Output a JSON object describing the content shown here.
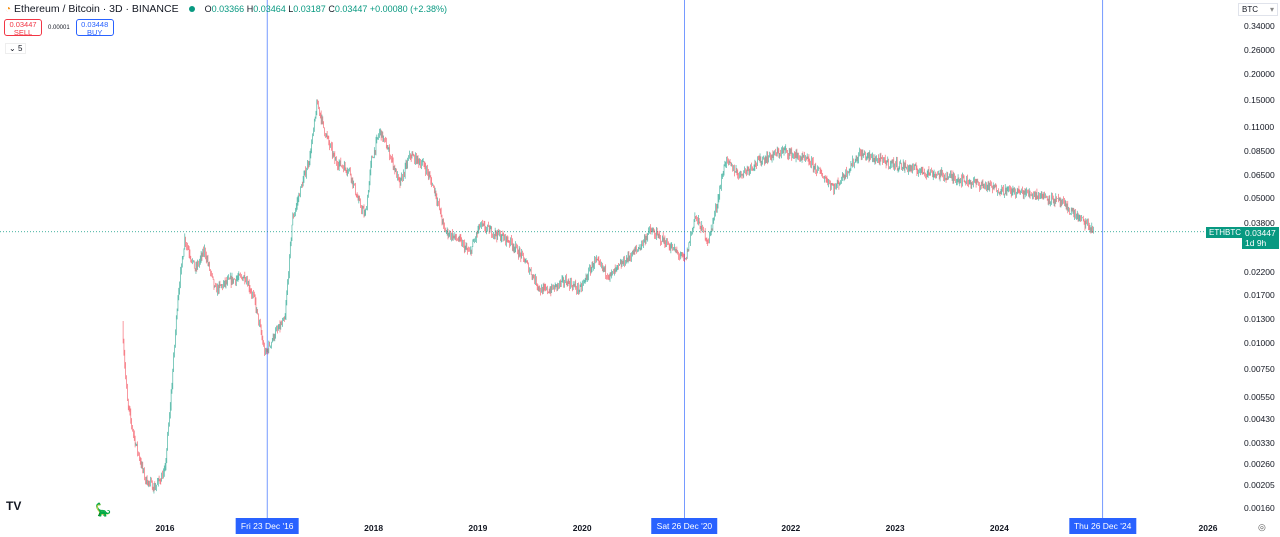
{
  "header": {
    "symbol": "Ethereum / Bitcoin · 3D · BINANCE",
    "open_label": "O",
    "open": "0.03366",
    "high_label": "H",
    "high": "0.03464",
    "low_label": "L",
    "low": "0.03187",
    "close_label": "C",
    "close": "0.03447",
    "change": "+0.00080 (+2.38%)"
  },
  "trade": {
    "sell_price": "0.03447",
    "sell_label": "SELL",
    "spread": "0.00001",
    "buy_price": "0.03448",
    "buy_label": "BUY"
  },
  "indicators_toggle": "5",
  "currency": "BTC",
  "price_tag": {
    "symbol": "ETHBTC",
    "price": "0.03447",
    "countdown": "1d 9h"
  },
  "colors": {
    "up": "#089981",
    "down": "#f23645",
    "crosshair": "#2962ff"
  },
  "chart_data": {
    "type": "candlestick",
    "scale": "log",
    "y_ticks": [
      "0.34000",
      "0.26000",
      "0.20000",
      "0.15000",
      "0.11000",
      "0.08500",
      "0.06500",
      "0.05000",
      "0.03800",
      "0.02200",
      "0.01700",
      "0.01300",
      "0.01000",
      "0.00750",
      "0.00550",
      "0.00430",
      "0.00330",
      "0.00260",
      "0.00205",
      "0.00160"
    ],
    "x_ticks": [
      "2016",
      "2018",
      "2019",
      "2020",
      "2022",
      "2023",
      "2024",
      "2026"
    ],
    "markers": [
      {
        "label": "Fri 23 Dec '16",
        "t": 2016.98
      },
      {
        "label": "Sat 26 Dec '20",
        "t": 2020.98
      },
      {
        "label": "Thu 26 Dec '24",
        "t": 2024.99
      }
    ],
    "last_price": 0.03447,
    "anchors": [
      [
        2015.59,
        0.0122
      ],
      [
        2015.64,
        0.0051
      ],
      [
        2015.71,
        0.0034
      ],
      [
        2015.81,
        0.0022
      ],
      [
        2015.9,
        0.002
      ],
      [
        2016.0,
        0.0024
      ],
      [
        2016.07,
        0.0067
      ],
      [
        2016.12,
        0.0162
      ],
      [
        2016.19,
        0.032
      ],
      [
        2016.29,
        0.0225
      ],
      [
        2016.38,
        0.028
      ],
      [
        2016.48,
        0.018
      ],
      [
        2016.62,
        0.02
      ],
      [
        2016.77,
        0.021
      ],
      [
        2016.86,
        0.016
      ],
      [
        2016.96,
        0.0088
      ],
      [
        2017.05,
        0.011
      ],
      [
        2017.15,
        0.0129
      ],
      [
        2017.22,
        0.039
      ],
      [
        2017.29,
        0.053
      ],
      [
        2017.39,
        0.08
      ],
      [
        2017.46,
        0.145
      ],
      [
        2017.53,
        0.106
      ],
      [
        2017.63,
        0.076
      ],
      [
        2017.77,
        0.068
      ],
      [
        2017.85,
        0.049
      ],
      [
        2017.92,
        0.041
      ],
      [
        2017.98,
        0.076
      ],
      [
        2018.06,
        0.106
      ],
      [
        2018.16,
        0.081
      ],
      [
        2018.25,
        0.058
      ],
      [
        2018.35,
        0.081
      ],
      [
        2018.49,
        0.072
      ],
      [
        2018.59,
        0.054
      ],
      [
        2018.68,
        0.035
      ],
      [
        2018.83,
        0.031
      ],
      [
        2018.92,
        0.027
      ],
      [
        2019.02,
        0.037
      ],
      [
        2019.16,
        0.034
      ],
      [
        2019.31,
        0.031
      ],
      [
        2019.45,
        0.025
      ],
      [
        2019.6,
        0.018
      ],
      [
        2019.69,
        0.018
      ],
      [
        2019.84,
        0.02
      ],
      [
        2019.98,
        0.018
      ],
      [
        2020.12,
        0.025
      ],
      [
        2020.27,
        0.021
      ],
      [
        2020.41,
        0.025
      ],
      [
        2020.55,
        0.029
      ],
      [
        2020.65,
        0.035
      ],
      [
        2020.79,
        0.031
      ],
      [
        2020.99,
        0.025
      ],
      [
        2021.08,
        0.041
      ],
      [
        2021.21,
        0.031
      ],
      [
        2021.3,
        0.049
      ],
      [
        2021.37,
        0.076
      ],
      [
        2021.51,
        0.065
      ],
      [
        2021.7,
        0.076
      ],
      [
        2021.94,
        0.085
      ],
      [
        2022.18,
        0.075
      ],
      [
        2022.42,
        0.056
      ],
      [
        2022.66,
        0.082
      ],
      [
        2022.86,
        0.076
      ],
      [
        2023.24,
        0.068
      ],
      [
        2023.62,
        0.062
      ],
      [
        2024.01,
        0.055
      ],
      [
        2024.39,
        0.052
      ],
      [
        2024.58,
        0.048
      ],
      [
        2024.72,
        0.042
      ],
      [
        2024.87,
        0.036
      ],
      [
        2024.91,
        0.0345
      ]
    ]
  }
}
